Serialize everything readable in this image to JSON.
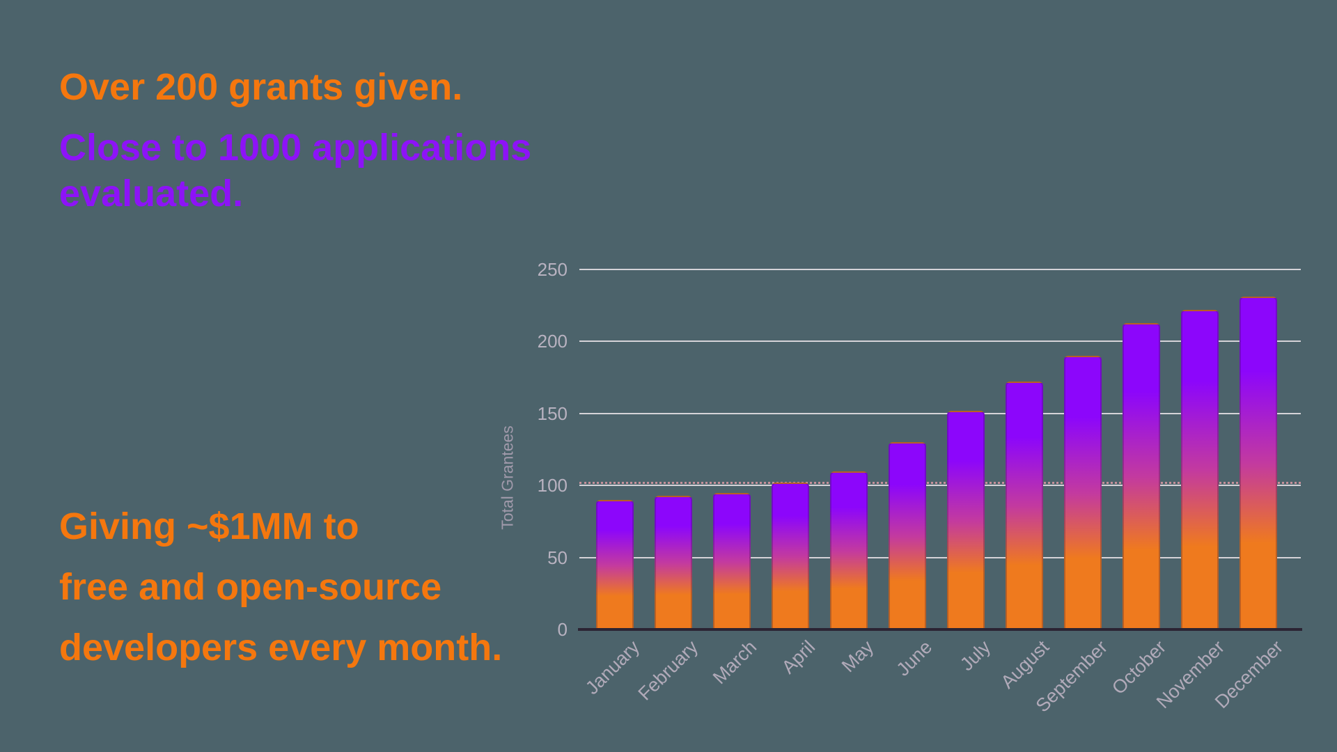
{
  "headlines": {
    "grants": {
      "text": "Over 200 grants given.",
      "color": "#F5770E"
    },
    "applications": {
      "lines": [
        "Close to 1000 applications",
        "evaluated."
      ],
      "color": "#8D13F7"
    },
    "giving": {
      "lines": [
        "Giving ~$1MM to",
        "free and open-source",
        "developers every month."
      ],
      "color": "#F5770E"
    }
  },
  "chart_data": {
    "type": "bar",
    "title": "",
    "categories": [
      "January",
      "February",
      "March",
      "April",
      "May",
      "June",
      "July",
      "August",
      "September",
      "October",
      "November",
      "December"
    ],
    "values": [
      90,
      93,
      95,
      102,
      110,
      130,
      152,
      172,
      190,
      213,
      222,
      231
    ],
    "xlabel": "",
    "ylabel": "Total Grantees",
    "ylim": [
      0,
      250
    ],
    "yticks": [
      0,
      50,
      100,
      150,
      200,
      250
    ],
    "grid": true,
    "legend": false,
    "reference_line": {
      "y": 100,
      "style": "dotted",
      "color": "#DB9AA4"
    },
    "bar_gradient": {
      "top": "#8C06FB",
      "middle": "#C33A9F",
      "bottom": "#EF7A1E"
    }
  },
  "colors": {
    "background": "#4C636B",
    "orange_text": "#F5770E",
    "purple_text": "#8D13F7",
    "gridline": "#D5D3D8",
    "axis_line": "#2B2433",
    "tick_label": "#B8B2C0",
    "month_label": "#B1AAB9",
    "y_axis_title": "#A19AAB"
  }
}
